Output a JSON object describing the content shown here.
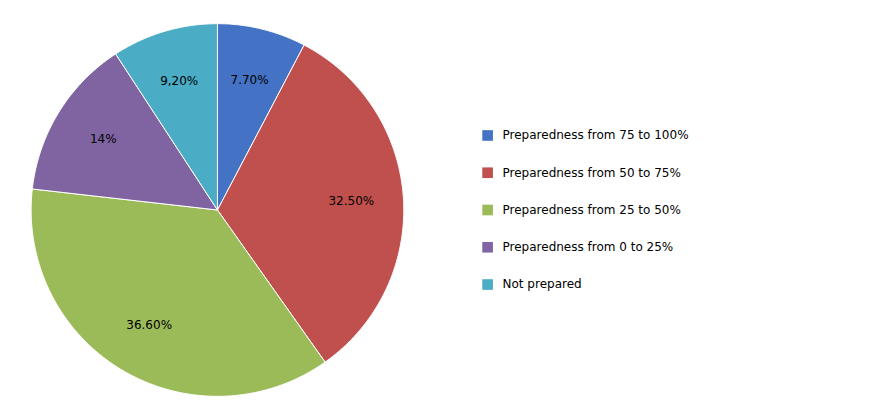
{
  "chart_data": {
    "type": "pie",
    "categories": [
      "Preparedness from 75 to 100%",
      "Preparedness from 50 to 75%",
      "Preparedness from 25 to 50%",
      "Preparedness from 0 to 25%",
      "Not prepared"
    ],
    "values": [
      7.7,
      32.5,
      36.6,
      14.0,
      9.2
    ],
    "value_labels": [
      "7.70%",
      "32.50%",
      "36.60%",
      "14%",
      "9,20%"
    ],
    "colors": [
      "#4472C4",
      "#C0504D",
      "#9BBB59",
      "#8064A2",
      "#4BACC6"
    ],
    "data_labels": true,
    "legend": "right"
  }
}
